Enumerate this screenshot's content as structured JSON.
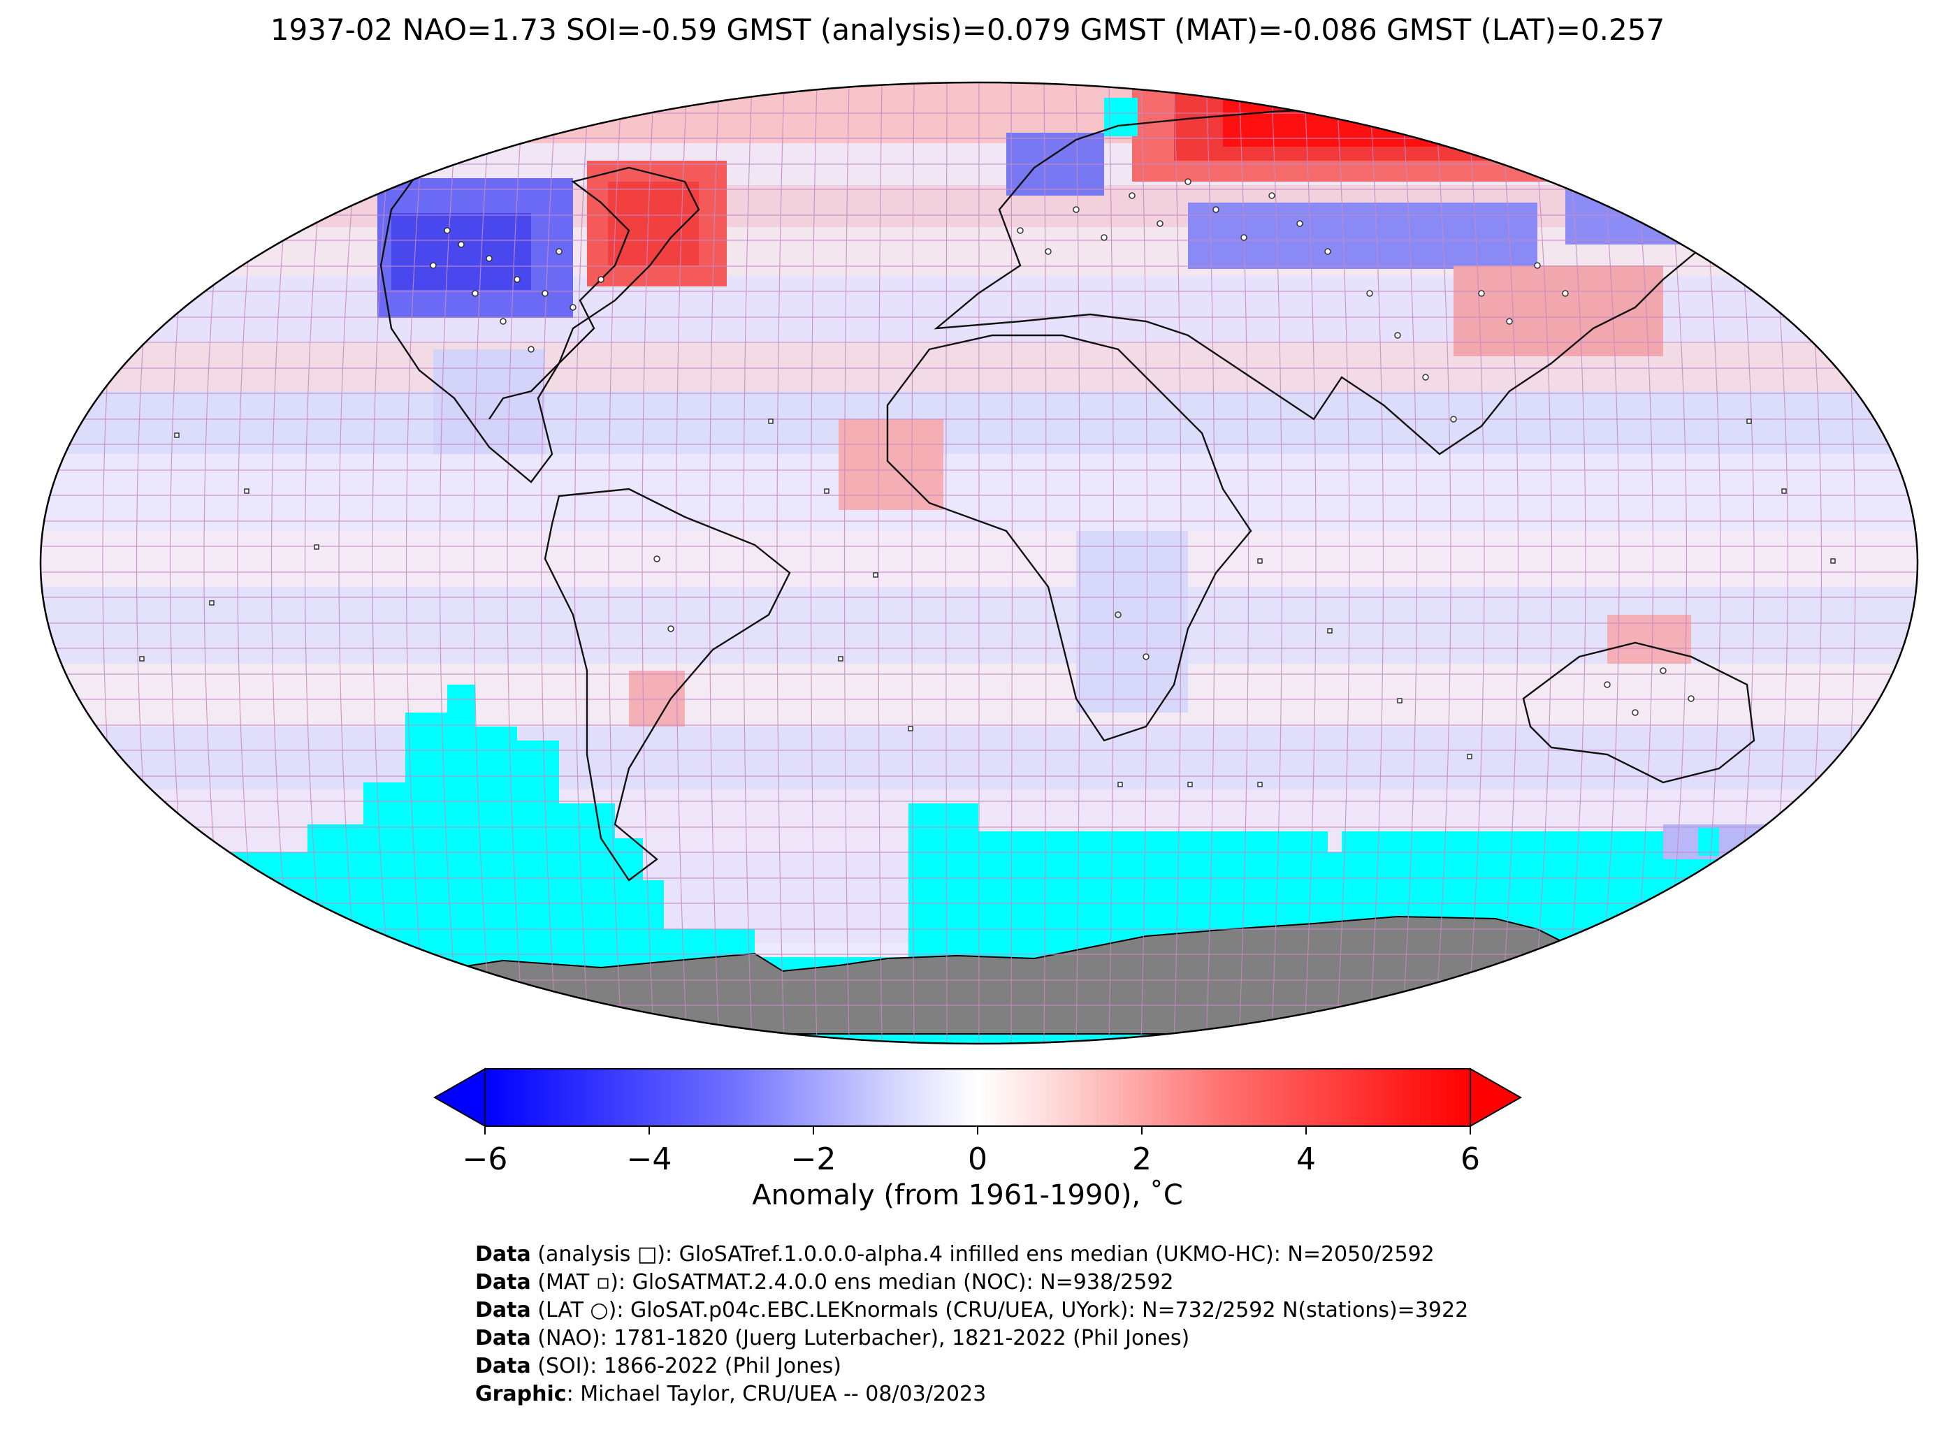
{
  "header": {
    "title": "1937-02 NAO=1.73 SOI=-0.59 GMST (analysis)=0.079 GMST (MAT)=-0.086 GMST (LAT)=0.257"
  },
  "colorbar": {
    "ticks": [
      "−6",
      "−4",
      "−2",
      "0",
      "2",
      "4",
      "6"
    ],
    "label": "Anomaly (from 1961-1990), ˚C",
    "colors": {
      "cold": "#0000ff",
      "neutral": "#ffffff",
      "warm": "#ff0000"
    }
  },
  "map": {
    "projection": "Robinson",
    "ice_color": "#00ffff",
    "land_color": "#808080",
    "grid_color": "#c080c0"
  },
  "credits": [
    {
      "bold": "Data",
      "text": " (analysis □): GloSATref.1.0.0.0-alpha.4 infilled ens median (UKMO-HC): N=2050/2592"
    },
    {
      "bold": "Data",
      "text": " (MAT ▫): GloSATMAT.2.4.0.0 ens median (NOC): N=938/2592"
    },
    {
      "bold": "Data",
      "text": " (LAT ○): GloSAT.p04c.EBC.LEKnormals (CRU/UEA, UYork): N=732/2592 N(stations)=3922"
    },
    {
      "bold": "Data",
      "text": " (NAO): 1781-1820 (Juerg Luterbacher), 1821-2022 (Phil Jones)"
    },
    {
      "bold": "Data",
      "text": " (SOI): 1866-2022 (Phil Jones)"
    },
    {
      "bold": "Graphic",
      "text": ": Michael Taylor, CRU/UEA -- 08/03/2023"
    }
  ]
}
